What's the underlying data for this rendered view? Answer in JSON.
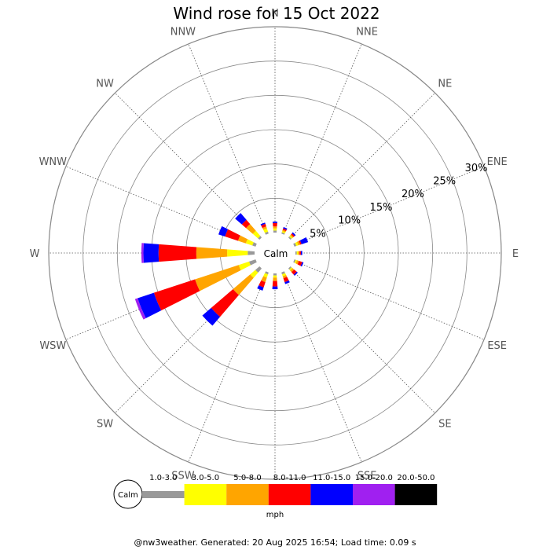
{
  "chart_data": {
    "type": "wind-rose",
    "title": "Wind rose for 15 Oct 2022",
    "directions": [
      "N",
      "NNE",
      "NE",
      "ENE",
      "E",
      "ESE",
      "SE",
      "SSE",
      "S",
      "SSW",
      "SW",
      "WSW",
      "W",
      "WNW",
      "NW",
      "NNW"
    ],
    "radial_ticks": [
      "5%",
      "10%",
      "15%",
      "20%",
      "25%",
      "30%"
    ],
    "radial_max_percent": 30,
    "calm_label": "Calm",
    "speed_bins": [
      "1.0-3.0",
      "3.0-5.0",
      "5.0-8.0",
      "8.0-11.0",
      "11.0-15.0",
      "15.0-20.0",
      "20.0-50.0"
    ],
    "bin_colors": [
      "#999999",
      "#ffff00",
      "#ffa500",
      "#ff0000",
      "#0000ff",
      "#a020f0",
      "#000000"
    ],
    "unit": "mph",
    "series": [
      {
        "direction": "N",
        "percent": [
          0.3,
          0.3,
          0.3,
          0.5,
          0.2,
          0,
          0
        ]
      },
      {
        "direction": "NNE",
        "percent": [
          0.2,
          0.2,
          0.2,
          0.2,
          0.2,
          0,
          0
        ]
      },
      {
        "direction": "NE",
        "percent": [
          0.2,
          0.2,
          0.2,
          0.2,
          0.2,
          0,
          0
        ]
      },
      {
        "direction": "ENE",
        "percent": [
          0.3,
          0.3,
          0.3,
          0.2,
          1.0,
          0,
          0
        ]
      },
      {
        "direction": "E",
        "percent": [
          0.2,
          0.2,
          0.2,
          0.2,
          0.2,
          0,
          0
        ]
      },
      {
        "direction": "ESE",
        "percent": [
          0.2,
          0.2,
          0.3,
          0.5,
          0.2,
          0,
          0
        ]
      },
      {
        "direction": "SE",
        "percent": [
          0.2,
          0.2,
          0.3,
          0.5,
          0.2,
          0,
          0
        ]
      },
      {
        "direction": "SSE",
        "percent": [
          0.3,
          0.3,
          0.3,
          0.6,
          0.3,
          0,
          0
        ]
      },
      {
        "direction": "S",
        "percent": [
          0.3,
          0.3,
          0.5,
          0.8,
          0.4,
          0,
          0
        ]
      },
      {
        "direction": "SSW",
        "percent": [
          0.3,
          0.5,
          0.7,
          0.8,
          0.5,
          0,
          0
        ]
      },
      {
        "direction": "SW",
        "percent": [
          0.8,
          1.0,
          3.3,
          4.2,
          1.7,
          0,
          0
        ]
      },
      {
        "direction": "WSW",
        "percent": [
          1.0,
          1.6,
          6.7,
          6.3,
          2.5,
          0.4,
          0
        ]
      },
      {
        "direction": "W",
        "percent": [
          1.0,
          3.0,
          4.5,
          5.5,
          2.2,
          0.3,
          0
        ]
      },
      {
        "direction": "WNW",
        "percent": [
          0.5,
          1.0,
          1.2,
          2.0,
          1.0,
          0,
          0
        ]
      },
      {
        "direction": "NW",
        "percent": [
          0.3,
          1.0,
          1.3,
          0.8,
          1.3,
          0,
          0
        ]
      },
      {
        "direction": "NNW",
        "percent": [
          0.3,
          0.5,
          0.3,
          0.4,
          0.2,
          0,
          0
        ]
      }
    ]
  },
  "footer": "@nw3weather. Generated: 20 Aug 2025 16:54; Load time: 0.09 s"
}
